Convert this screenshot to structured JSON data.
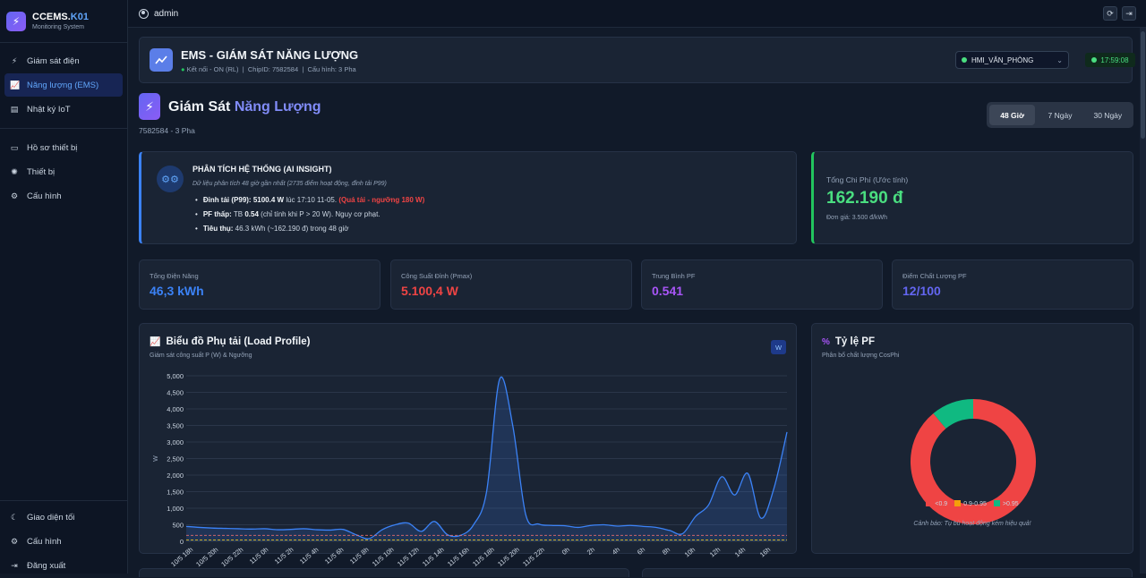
{
  "brand": {
    "name": "CCEMS.",
    "name_accent": "K01",
    "subtitle": "Monitoring System"
  },
  "sidebar": {
    "items": [
      {
        "label": "Giám sát điện",
        "icon": "bolt-icon"
      },
      {
        "label": "Năng lượng (EMS)",
        "icon": "chart-line-icon"
      },
      {
        "label": "Nhật ký IoT",
        "icon": "clipboard-icon"
      },
      {
        "label": "Hồ sơ thiết bị",
        "icon": "id-card-icon"
      },
      {
        "label": "Thiết bị",
        "icon": "cog-icon"
      },
      {
        "label": "Cấu hình",
        "icon": "gear-icon"
      }
    ],
    "bottom": [
      {
        "label": "Giao diện tối",
        "icon": "moon-icon"
      },
      {
        "label": "Cấu hình",
        "icon": "gear-icon"
      },
      {
        "label": "Đăng xuất",
        "icon": "logout-icon"
      }
    ]
  },
  "topbar": {
    "user": "admin"
  },
  "header": {
    "title": "EMS - GIÁM SÁT NĂNG LƯỢNG",
    "status": "Kết nối - ON (RL)",
    "chip": "ChipID: 7582584",
    "config": "Cấu hình: 3  Pha",
    "device": "HMI_VĂN_PHÒNG",
    "time": "17:59:08"
  },
  "page": {
    "title": "Giám Sát",
    "title_accent": "Năng Lượng",
    "subtitle": "7582584 - 3 Pha",
    "ranges": [
      "48 Giờ",
      "7 Ngày",
      "30 Ngày"
    ]
  },
  "insight": {
    "title": "PHÂN TÍCH HỆ THỐNG (AI INSIGHT)",
    "desc": "Dữ liệu phân tích 48 giờ gần nhất (2735 điểm hoạt động, đỉnh tải P99)",
    "peak_label": "Đỉnh tải (P99):",
    "peak_value": "5100.4 W",
    "peak_time": "lúc 17:10 11-05.",
    "peak_warn": "(Quá tải - ngưỡng 180 W)",
    "pf_label": "PF thấp:",
    "pf_pre": "TB",
    "pf_value": "0.54",
    "pf_note": "(chỉ tính khi P > 20 W). Nguy cơ phạt.",
    "use_label": "Tiêu thụ:",
    "use_value": "46.3 kWh (~162.190 đ) trong 48 giờ"
  },
  "cost": {
    "label": "Tổng Chi Phí (Ước tính)",
    "value": "162.190 đ",
    "unit_price": "Đơn giá: 3.500 đ/kWh"
  },
  "stats": [
    {
      "label": "Tổng Điện Năng",
      "value": "46,3 kWh",
      "color": "#3b82f6"
    },
    {
      "label": "Công Suất Đỉnh (Pmax)",
      "value": "5.100,4 W",
      "color": "#ef4444"
    },
    {
      "label": "Trung Bình PF",
      "value": "0.541",
      "color": "#a855f7"
    },
    {
      "label": "Điểm Chất Lượng PF",
      "value": "12/100",
      "color": "#6366f1"
    }
  ],
  "load_chart": {
    "title": "Biểu đồ Phụ tải (Load Profile)",
    "subtitle": "Giám sát công suất P (W) & Ngưỡng",
    "unit_badge": "W"
  },
  "pf_chart": {
    "title": "Tỷ lệ PF",
    "subtitle": "Phân bổ chất lượng CosPhi",
    "warning": "Cảnh báo: Tụ bù hoạt động kém hiệu quả!"
  },
  "chart_data": [
    {
      "type": "area",
      "ylabel": "W",
      "ylim": [
        0,
        5000
      ],
      "yticks": [
        "5,000",
        "4,500",
        "4,000",
        "3,500",
        "3,000",
        "2,500",
        "2,000",
        "1,500",
        "1,000",
        "500",
        "0"
      ],
      "xticks": [
        "10/5 18h",
        "10/5 20h",
        "10/5 22h",
        "11/5 0h",
        "11/5 2h",
        "11/5 4h",
        "11/5 6h",
        "11/5 8h",
        "11/5 10h",
        "11/5 12h",
        "11/5 14h",
        "11/5 16h",
        "11/5 18h",
        "11/5 20h",
        "11/5 22h",
        "0h",
        "2h",
        "4h",
        "6h",
        "8h",
        "10h",
        "12h",
        "14h",
        "16h"
      ],
      "series": [
        {
          "color": "#3b82f6",
          "x": [
            0,
            1,
            2,
            3,
            4,
            5,
            6,
            7,
            8,
            9,
            10,
            11,
            12,
            13,
            14,
            15,
            16,
            17,
            18,
            19,
            20,
            21,
            22,
            23,
            24,
            25,
            26,
            27,
            28,
            29,
            30,
            31,
            32,
            33,
            34,
            35,
            36,
            37,
            38,
            39,
            40,
            41,
            42,
            43,
            44,
            45,
            46
          ],
          "values": [
            450,
            420,
            400,
            390,
            380,
            370,
            380,
            350,
            360,
            380,
            350,
            340,
            360,
            200,
            80,
            350,
            500,
            550,
            300,
            600,
            200,
            180,
            500,
            1500,
            4900,
            3500,
            800,
            520,
            480,
            470,
            420,
            480,
            500,
            460,
            480,
            450,
            420,
            330,
            230,
            750,
            1100,
            1950,
            1400,
            2050,
            700,
            1600,
            3300
          ]
        },
        {
          "color": "#f87171",
          "values": [
            180
          ]
        },
        {
          "color": "#facc15",
          "values": [
            40
          ]
        }
      ]
    },
    {
      "type": "pie",
      "categories": [
        "<0.9",
        "0.9-0.95",
        ">0.95"
      ],
      "values": [
        89,
        0,
        11
      ],
      "colors": [
        "#ef4444",
        "#f59e0b",
        "#10b981"
      ]
    }
  ]
}
